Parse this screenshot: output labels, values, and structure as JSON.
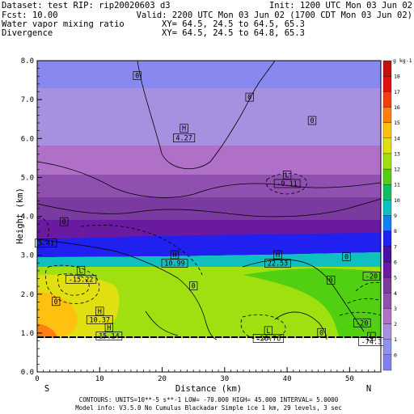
{
  "header": {
    "dataset": "Dataset: test  RIP: rip20020603 d3",
    "init": "Init: 1200 UTC Mon 03 Jun 02",
    "fcst": "Fcst:    10.00",
    "valid": "Valid: 2200 UTC Mon 03 Jun 02 (1700 CDT Mon 03 Jun 02)",
    "field1": "Water vapor mixing ratio",
    "field1_xy": "XY=  64.5, 24.5 to  64.5, 65.3",
    "field2": "Divergence",
    "field2_xy": "XY=  64.5, 24.5 to  64.8, 65.3"
  },
  "footer": {
    "line1": "CONTOURS:  UNITS=10**-5 s**-1  LOW=  -70.000    HIGH=  45.000    INTERVAL=   5.0000",
    "line2": "Model info: V3.5.0 No Cumulus Blackadar  Simple ice   1 km,  29 levels,    3 sec"
  },
  "compass": {
    "left": "S",
    "right": "N"
  },
  "chart_data": {
    "type": "heatmap",
    "title": "Water vapor mixing ratio / Divergence cross section",
    "xlabel": "Distance (km)",
    "ylabel": "Height (km)",
    "xlim": [
      0,
      55
    ],
    "ylim": [
      0,
      8
    ],
    "xticks": [
      "0",
      "10",
      "20",
      "30",
      "40",
      "50"
    ],
    "yticks": [
      "0.0",
      "1.0",
      "2.0",
      "3.0",
      "4.0",
      "5.0",
      "6.0",
      "7.0",
      "8.0"
    ],
    "colorbar_unit": "g kg-1",
    "colorbar_levels": [
      "0",
      "1",
      "2",
      "3",
      "4",
      "5",
      "6",
      "7",
      "8",
      "9",
      "10",
      "11",
      "12",
      "13",
      "14",
      "15",
      "16",
      "17",
      "18"
    ],
    "colorbar_colors": [
      "#8080ee",
      "#9090f0",
      "#a890e0",
      "#b070c8",
      "#9050b0",
      "#7a3aa0",
      "#6a1aa0",
      "#4a10a0",
      "#2020f0",
      "#1080f0",
      "#10c0c0",
      "#10c060",
      "#50d010",
      "#a0e010",
      "#e0e010",
      "#ffc010",
      "#ff8010",
      "#f04010",
      "#e01010",
      "#c01010"
    ],
    "labels": [
      {
        "text": "0",
        "x": 16,
        "y": 7.55
      },
      {
        "text": "0",
        "x": 34,
        "y": 7.0
      },
      {
        "text": "H",
        "x": 23.5,
        "y": 6.2
      },
      {
        "text": "4.27",
        "x": 23.5,
        "y": 5.95
      },
      {
        "text": "0",
        "x": 44,
        "y": 6.4
      },
      {
        "text": "L",
        "x": 40,
        "y": 5.0
      },
      {
        "text": "-9.11",
        "x": 40,
        "y": 4.78
      },
      {
        "text": "0",
        "x": 4.3,
        "y": 3.8
      },
      {
        "text": "3.41",
        "x": 1.4,
        "y": 3.25
      },
      {
        "text": "H",
        "x": 22,
        "y": 2.95
      },
      {
        "text": "10.99",
        "x": 22,
        "y": 2.73
      },
      {
        "text": "H",
        "x": 38.5,
        "y": 2.95
      },
      {
        "text": "22.53",
        "x": 38.5,
        "y": 2.73
      },
      {
        "text": "0",
        "x": 49.5,
        "y": 2.9
      },
      {
        "text": "L",
        "x": 7,
        "y": 2.55
      },
      {
        "text": "-15.22",
        "x": 7,
        "y": 2.32
      },
      {
        "text": "0",
        "x": 47,
        "y": 2.3
      },
      {
        "text": "-20",
        "x": 53.5,
        "y": 2.4
      },
      {
        "text": "0",
        "x": 25,
        "y": 2.15
      },
      {
        "text": "0",
        "x": 3,
        "y": 1.75
      },
      {
        "text": "H",
        "x": 10,
        "y": 1.5
      },
      {
        "text": "10.37",
        "x": 10,
        "y": 1.28
      },
      {
        "text": "-20",
        "x": 52,
        "y": 1.2
      },
      {
        "text": "H",
        "x": 11.5,
        "y": 1.08
      },
      {
        "text": "15.14",
        "x": 11.5,
        "y": 0.86
      },
      {
        "text": "L",
        "x": 37,
        "y": 1.0
      },
      {
        "text": "-26.76",
        "x": 37,
        "y": 0.8
      },
      {
        "text": "0",
        "x": 45.5,
        "y": 0.95
      },
      {
        "text": "L",
        "x": 53.5,
        "y": 0.85
      },
      {
        "text": "-74.3",
        "x": 53.5,
        "y": 0.72
      }
    ],
    "grid": false,
    "legend": "right colorbar"
  }
}
